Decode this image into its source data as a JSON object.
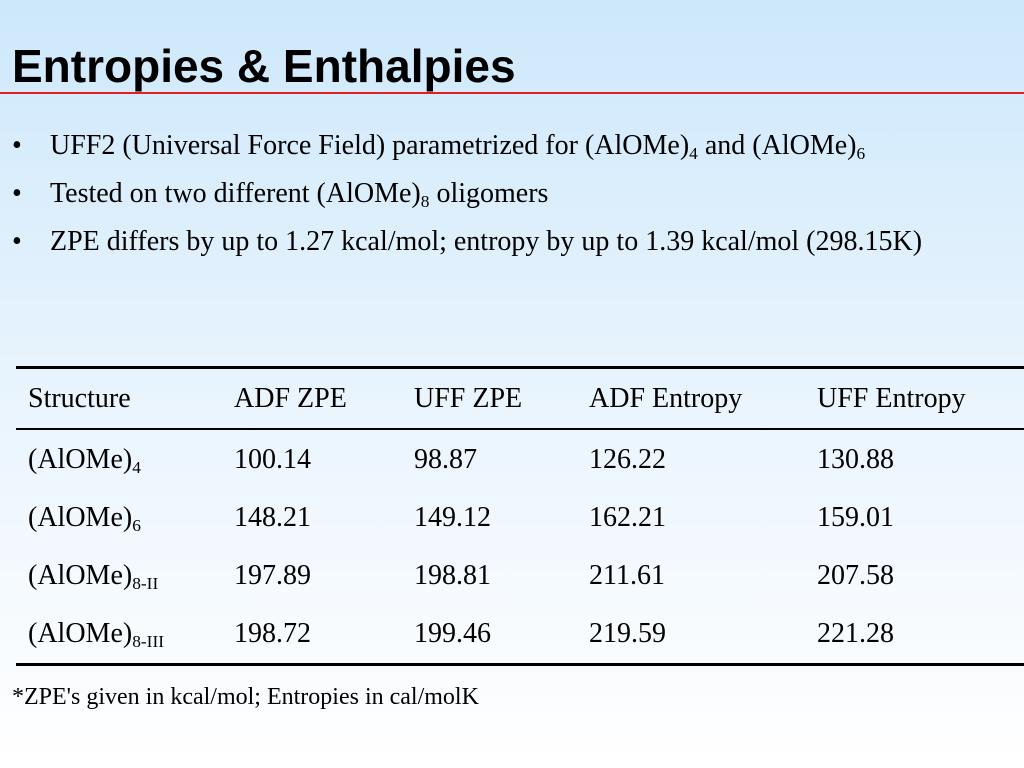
{
  "title": "Entropies & Enthalpies",
  "bullets": [
    {
      "parts": [
        "UFF2 (Universal Force Field) parametrized for (AlOMe)",
        "4",
        " and (AlOMe)",
        "6"
      ]
    },
    {
      "parts": [
        "Tested on two different (AlOMe)",
        "8",
        " oligomers"
      ]
    },
    {
      "text": "ZPE differs by up to 1.27 kcal/mol; entropy by up to 1.39 kcal/mol (298.15K)"
    }
  ],
  "bullet_glyph": "•",
  "table": {
    "headers": [
      "Structure",
      "ADF ZPE",
      "UFF ZPE",
      "ADF Entropy",
      "UFF Entropy"
    ],
    "rows": [
      {
        "structure": "(AlOMe)",
        "sub": "4",
        "values": [
          "100.14",
          "98.87",
          "126.22",
          "130.88"
        ]
      },
      {
        "structure": "(AlOMe)",
        "sub": "6",
        "values": [
          "148.21",
          "149.12",
          "162.21",
          "159.01"
        ]
      },
      {
        "structure": "(AlOMe)",
        "sub": "8-II",
        "values": [
          "197.89",
          "198.81",
          "211.61",
          "207.58"
        ]
      },
      {
        "structure": "(AlOMe)",
        "sub": "8-III",
        "values": [
          "198.72",
          "199.46",
          "219.59",
          "221.28"
        ]
      }
    ]
  },
  "footnote": "*ZPE's given in kcal/mol; Entropies in cal/molK",
  "colors": {
    "title_rule": "#e02020",
    "background_top": "#cde8fb"
  }
}
